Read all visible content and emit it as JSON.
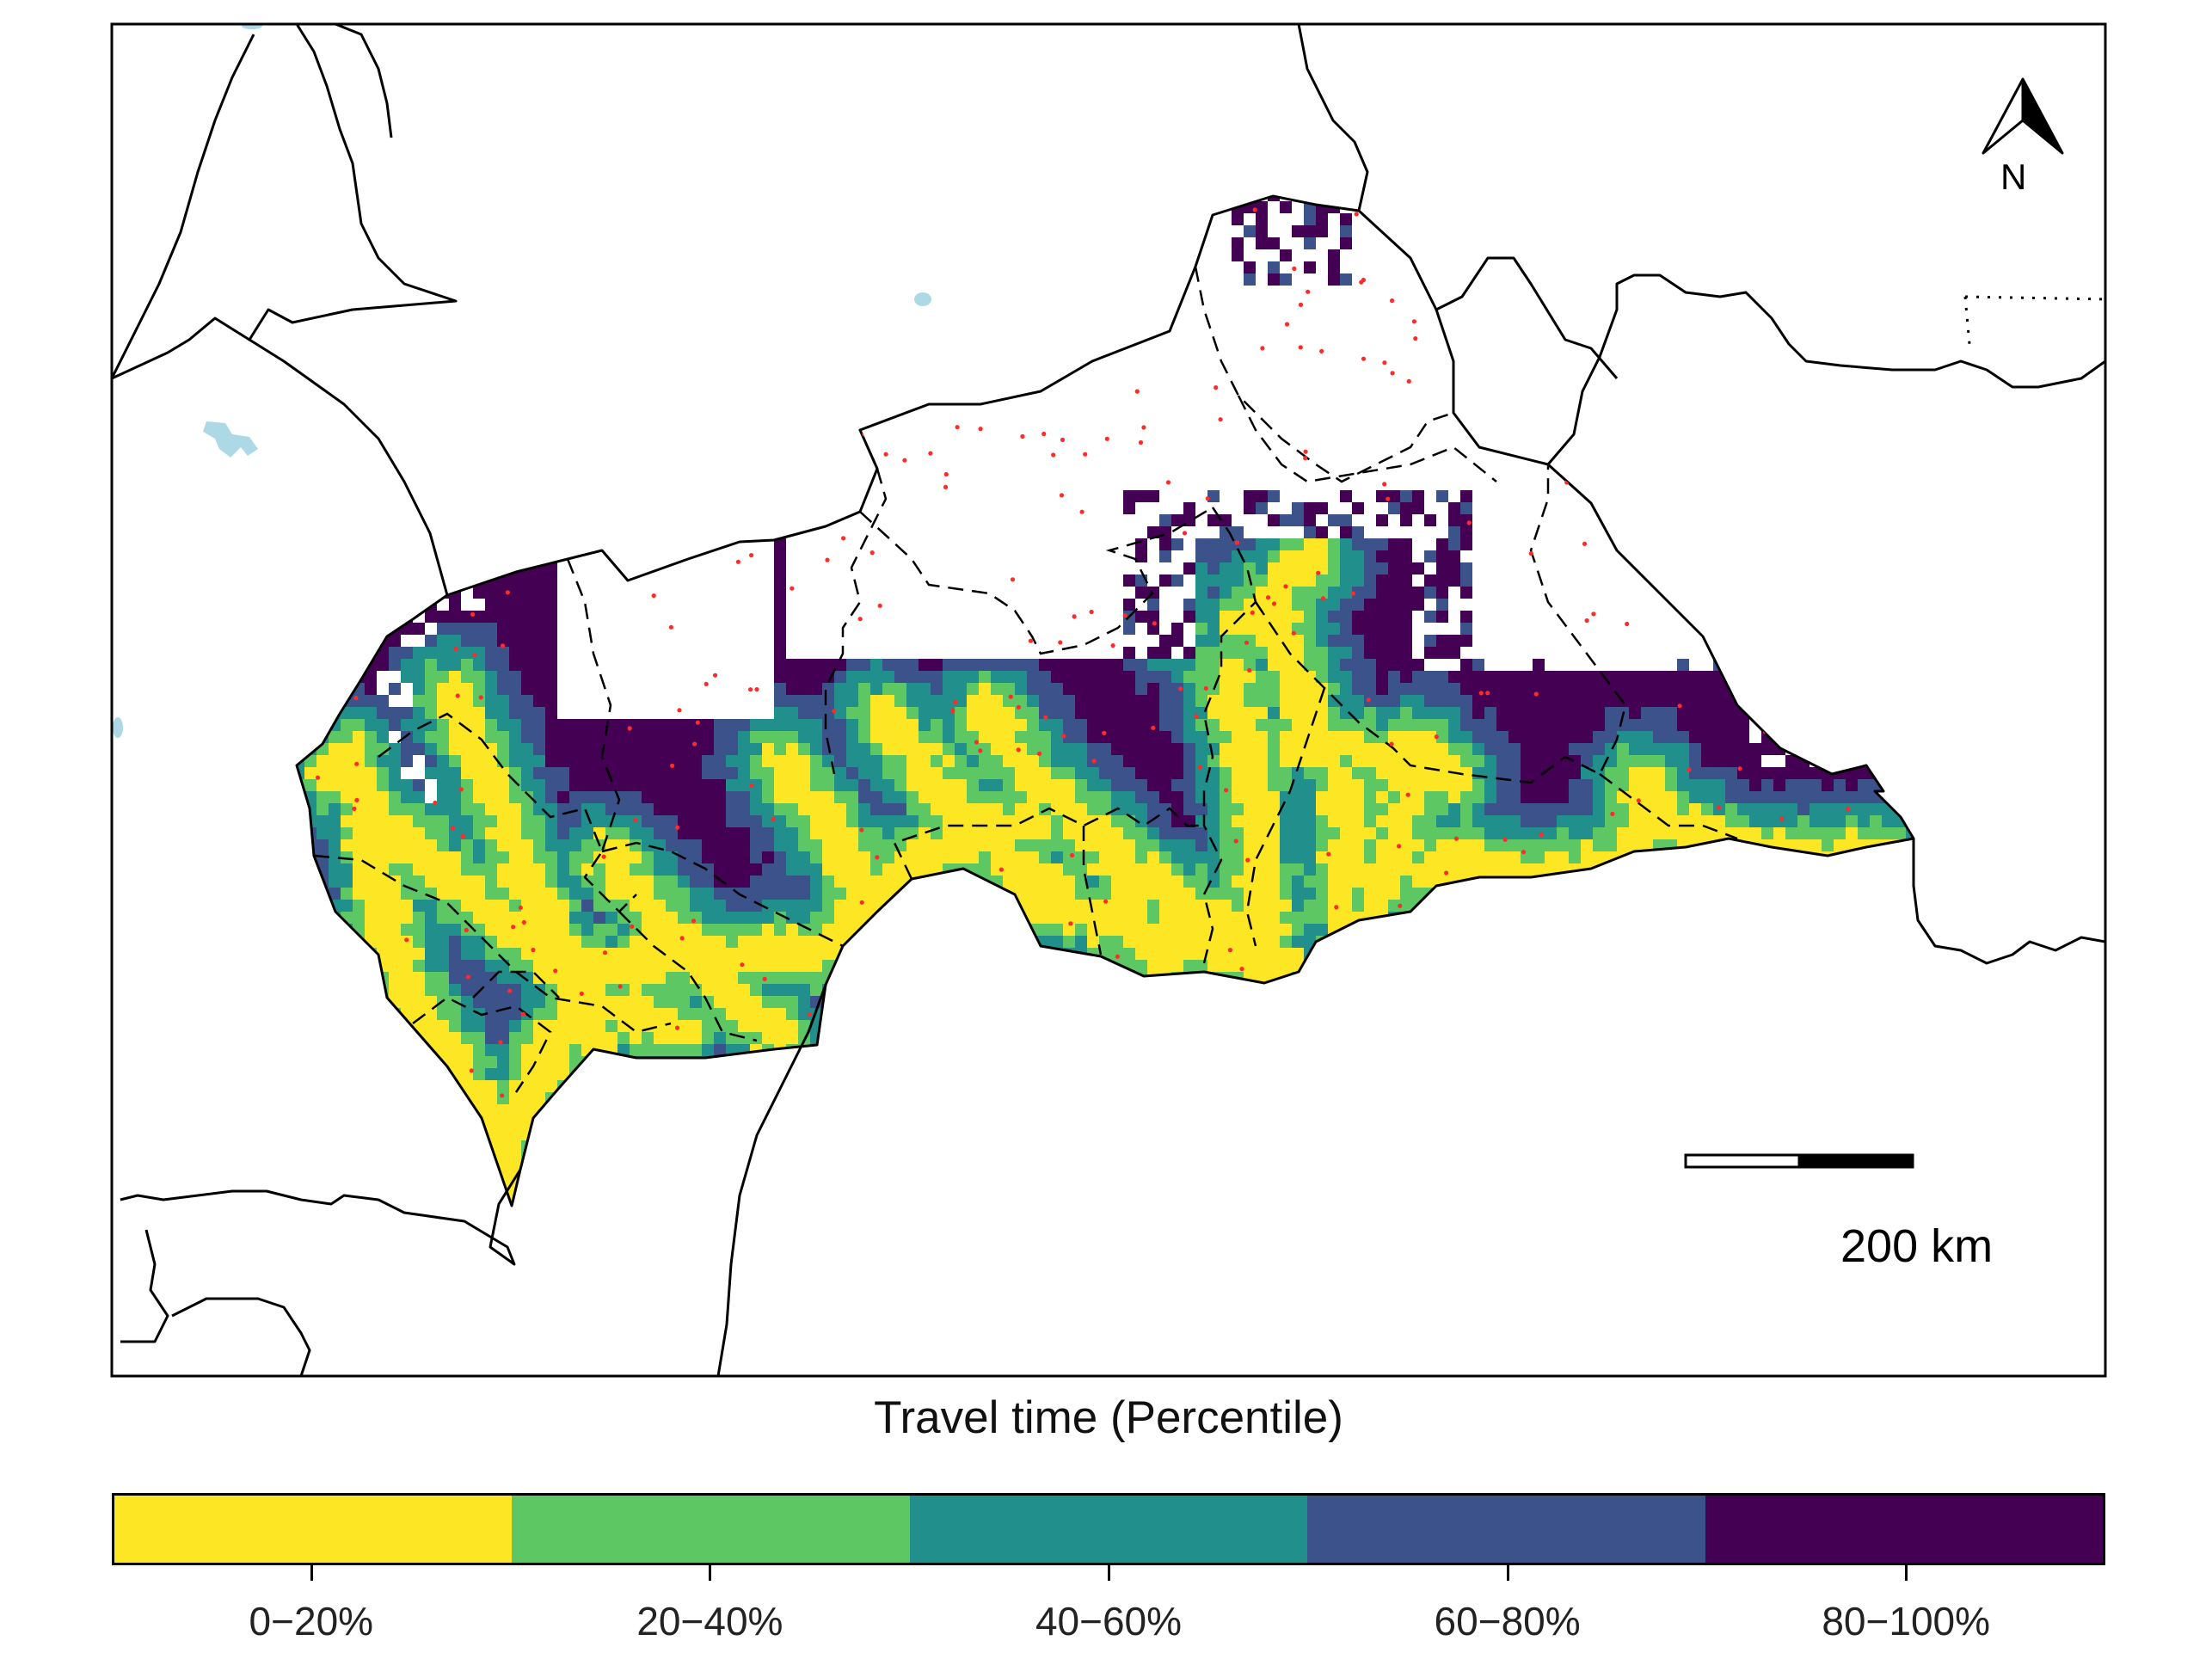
{
  "legend": {
    "title": "Travel time (Percentile)",
    "classes": [
      {
        "label": "0−20%",
        "color": "#FDE725"
      },
      {
        "label": "20−40%",
        "color": "#5DC863"
      },
      {
        "label": "40−60%",
        "color": "#21908C"
      },
      {
        "label": "60−80%",
        "color": "#3B528B"
      },
      {
        "label": "80−100%",
        "color": "#440154"
      }
    ]
  },
  "scale_bar": {
    "label": "200 km"
  },
  "north_arrow": {
    "label": "N"
  },
  "colors": {
    "water": "#ADD8E6",
    "facility_points": "#FF2A2A",
    "boundaries": "#000000",
    "no_data": "#FFFFFF"
  }
}
